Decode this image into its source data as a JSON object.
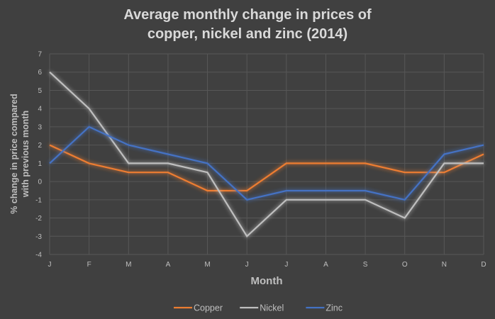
{
  "chart_data": {
    "type": "line",
    "title": "Average monthly change in prices of copper, nickel and zinc (2014)",
    "title_lines": [
      "Average monthly change in prices of",
      "copper, nickel and zinc (2014)"
    ],
    "xlabel": "Month",
    "ylabel_lines": [
      "% change in price compared",
      "with previous month"
    ],
    "ylabel": "% change in price compared with previous month",
    "categories": [
      "J",
      "F",
      "M",
      "A",
      "M",
      "J",
      "J",
      "A",
      "S",
      "O",
      "N",
      "D"
    ],
    "ylim": [
      -4,
      7
    ],
    "yticks": [
      7,
      6,
      5,
      4,
      3,
      2,
      1,
      0,
      -1,
      -2,
      -3,
      -4
    ],
    "grid": true,
    "legend_position": "bottom",
    "series": [
      {
        "name": "Copper",
        "color": "#ED7D31",
        "values": [
          2,
          1,
          0.5,
          0.5,
          -0.5,
          -0.5,
          1,
          1,
          1,
          0.5,
          0.5,
          1.5
        ]
      },
      {
        "name": "Nickel",
        "color": "#BFBFBF",
        "values": [
          6,
          4,
          1,
          1,
          0.5,
          -3,
          -1,
          -1,
          -1,
          -2,
          1,
          1
        ]
      },
      {
        "name": "Zinc",
        "color": "#4472C4",
        "values": [
          1,
          3,
          2,
          1.5,
          1,
          -1,
          -0.5,
          -0.5,
          -0.5,
          -1,
          1.5,
          2
        ]
      }
    ]
  }
}
